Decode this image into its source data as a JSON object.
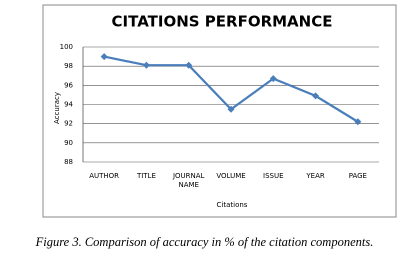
{
  "chart_data": {
    "type": "line",
    "title": "CITATIONS PERFORMANCE",
    "x_label": "Citations",
    "y_label": "Accuracy",
    "categories": [
      "AUTHOR",
      "TITLE",
      "JOURNAL NAME",
      "VOLUME",
      "ISSUE",
      "YEAR",
      "PAGE"
    ],
    "series": [
      {
        "color": "#4a7ebb",
        "values": [
          99,
          98.1,
          98.1,
          93.5,
          96.7,
          94.9,
          92.2
        ]
      }
    ],
    "ylim": [
      88,
      100
    ],
    "yticks": [
      88,
      90,
      92,
      94,
      96,
      98,
      100
    ],
    "grid": true
  },
  "caption": {
    "label": "Figure 3.",
    "text": "Comparison of accuracy in % of the citation components."
  }
}
